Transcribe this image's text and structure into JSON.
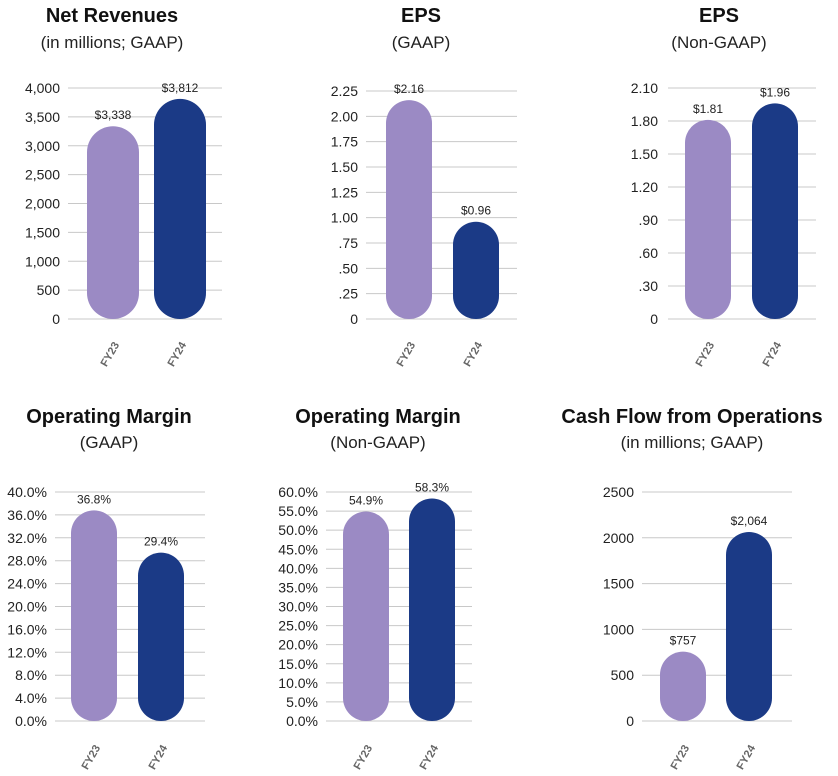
{
  "colors": {
    "FY23": "#9b8ac4",
    "FY24": "#1b3a86",
    "grid": "#c8c8c8"
  },
  "chart_data": [
    {
      "type": "bar",
      "title": "Net Revenues",
      "subtitle": "(in millions; GAAP)",
      "categories": [
        "FY23",
        "FY24"
      ],
      "values": [
        3338,
        3812
      ],
      "data_labels": [
        "$3,338",
        "$3,812"
      ],
      "yticks": [
        "4,000",
        "3,500",
        "3,000",
        "2,500",
        "2,000",
        "1,500",
        "1,000",
        "500",
        "0"
      ],
      "ylim": [
        0,
        4000
      ],
      "grid": true
    },
    {
      "type": "bar",
      "title": "EPS",
      "subtitle": "(GAAP)",
      "categories": [
        "FY23",
        "FY24"
      ],
      "values": [
        2.16,
        0.96
      ],
      "data_labels": [
        "$2.16",
        "$0.96"
      ],
      "yticks": [
        "2.25",
        "2.00",
        "1.75",
        "1.50",
        "1.25",
        "1.00",
        ".75",
        ".50",
        ".25",
        "0"
      ],
      "ylim": [
        0,
        2.25
      ],
      "grid": true
    },
    {
      "type": "bar",
      "title": "EPS",
      "subtitle": "(Non-GAAP)",
      "categories": [
        "FY23",
        "FY24"
      ],
      "values": [
        1.81,
        1.96
      ],
      "data_labels": [
        "$1.81",
        "$1.96"
      ],
      "yticks": [
        "2.10",
        "1.80",
        "1.50",
        "1.20",
        ".90",
        ".60",
        ".30",
        "0"
      ],
      "ylim": [
        0,
        2.1
      ],
      "grid": true
    },
    {
      "type": "bar",
      "title": "Operating Margin",
      "subtitle": "(GAAP)",
      "categories": [
        "FY23",
        "FY24"
      ],
      "values": [
        36.8,
        29.4
      ],
      "data_labels": [
        "36.8%",
        "29.4%"
      ],
      "yticks": [
        "40.0%",
        "36.0%",
        "32.0%",
        "28.0%",
        "24.0%",
        "20.0%",
        "16.0%",
        "12.0%",
        "8.0%",
        "4.0%",
        "0.0%"
      ],
      "ylim": [
        0,
        40
      ],
      "grid": true
    },
    {
      "type": "bar",
      "title": "Operating Margin",
      "subtitle": "(Non-GAAP)",
      "categories": [
        "FY23",
        "FY24"
      ],
      "values": [
        54.9,
        58.3
      ],
      "data_labels": [
        "54.9%",
        "58.3%"
      ],
      "yticks": [
        "60.0%",
        "55.0%",
        "50.0%",
        "45.0%",
        "40.0%",
        "35.0%",
        "30.0%",
        "25.0%",
        "20.0%",
        "15.0%",
        "10.0%",
        "5.0%",
        "0.0%"
      ],
      "ylim": [
        0,
        60
      ],
      "grid": true
    },
    {
      "type": "bar",
      "title": "Cash Flow from Operations",
      "subtitle": "(in millions; GAAP)",
      "categories": [
        "FY23",
        "FY24"
      ],
      "values": [
        757,
        2064
      ],
      "data_labels": [
        "$757",
        "$2,064"
      ],
      "yticks": [
        "2500",
        "2000",
        "1500",
        "1000",
        "500",
        "0"
      ],
      "ylim": [
        0,
        2500
      ],
      "grid": true
    }
  ]
}
